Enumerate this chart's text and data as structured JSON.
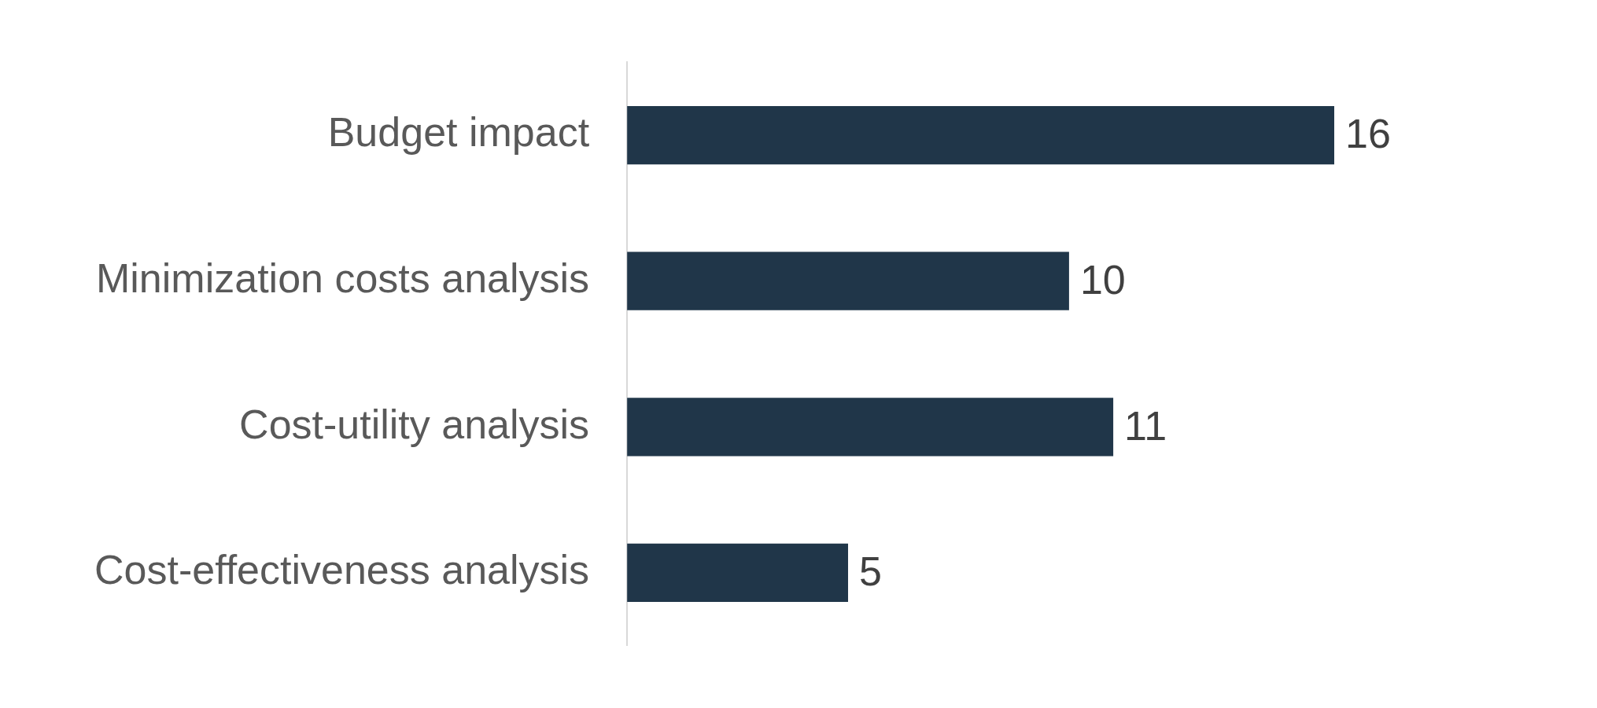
{
  "chart_data": {
    "type": "bar",
    "orientation": "horizontal",
    "categories": [
      "Budget impact",
      "Minimization costs analysis",
      "Cost-utility analysis",
      "Cost-effectiveness analysis"
    ],
    "values": [
      16,
      10,
      11,
      5
    ],
    "color": "#203649",
    "data_labels": true,
    "grid": false,
    "legend": false
  }
}
